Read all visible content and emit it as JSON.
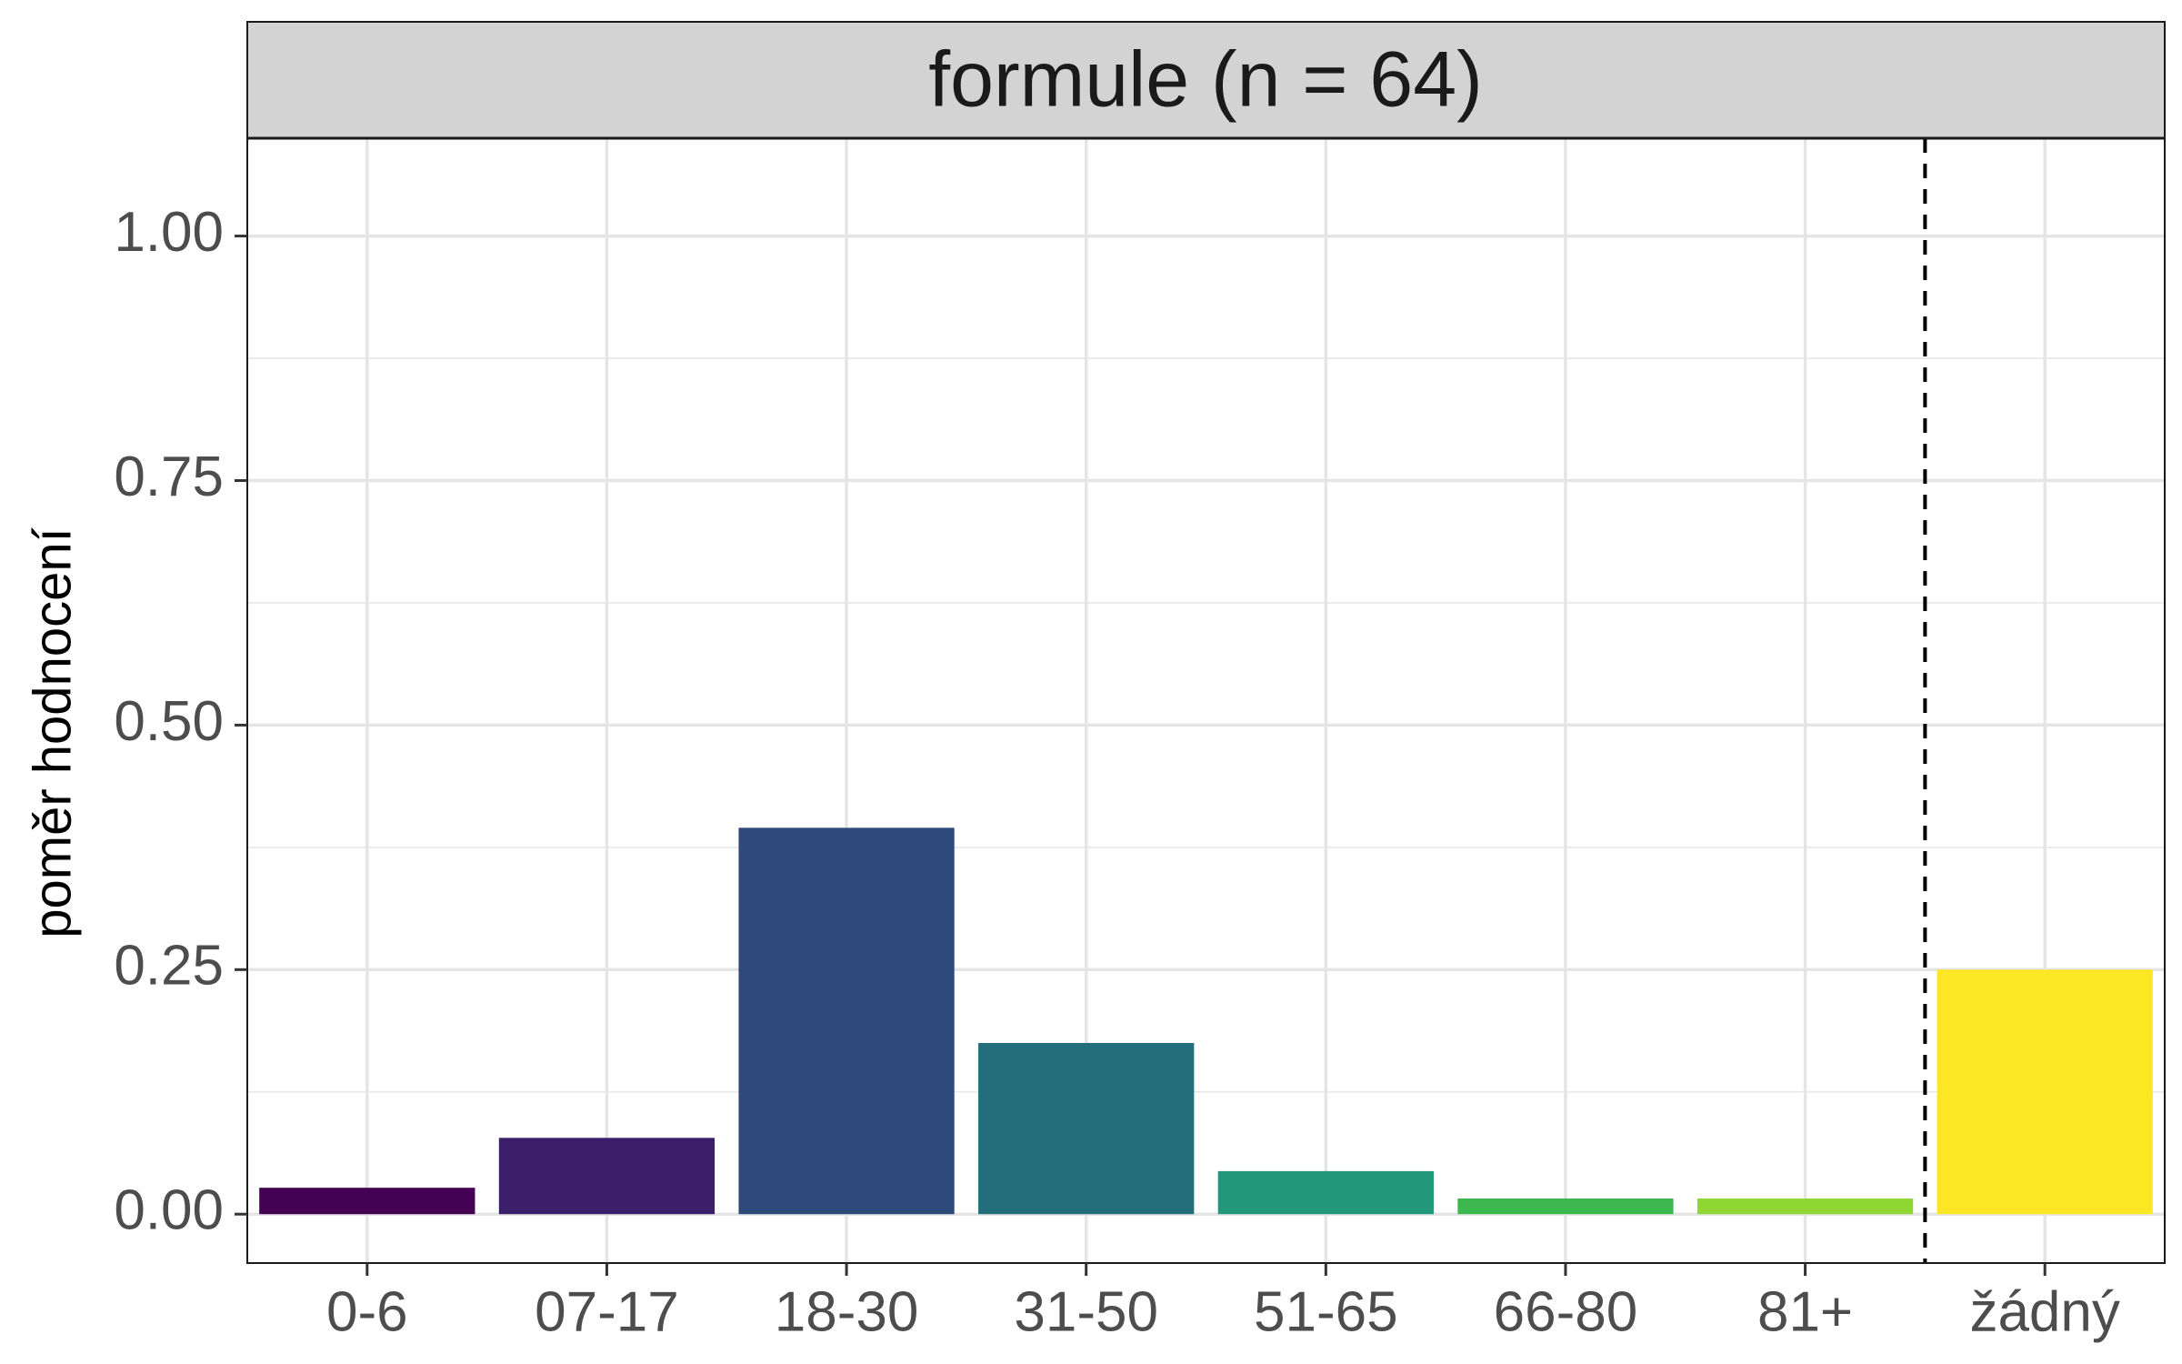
{
  "chart_data": {
    "type": "bar",
    "facet_title": "formule (n = 64)",
    "ylabel": "poměr hodnocení",
    "xlabel": "",
    "categories": [
      "0-6",
      "07-17",
      "18-30",
      "31-50",
      "51-65",
      "66-80",
      "81+",
      "žádný"
    ],
    "values": [
      0.027,
      0.078,
      0.395,
      0.175,
      0.044,
      0.016,
      0.016,
      0.25
    ],
    "colors": [
      "#440154",
      "#3B1F6B",
      "#2D4A7A",
      "#226E7A",
      "#22977A",
      "#3CB84E",
      "#8FD633",
      "#FDE725"
    ],
    "ylim": [
      -0.05,
      1.1
    ],
    "yticks": [
      0.0,
      0.25,
      0.5,
      0.75,
      1.0
    ],
    "ytick_labels": [
      "0.00",
      "0.25",
      "0.50",
      "0.75",
      "1.00"
    ],
    "reference_line": {
      "style": "dashed",
      "between": [
        "81+",
        "žádný"
      ]
    },
    "grid": true,
    "legend": "none"
  }
}
